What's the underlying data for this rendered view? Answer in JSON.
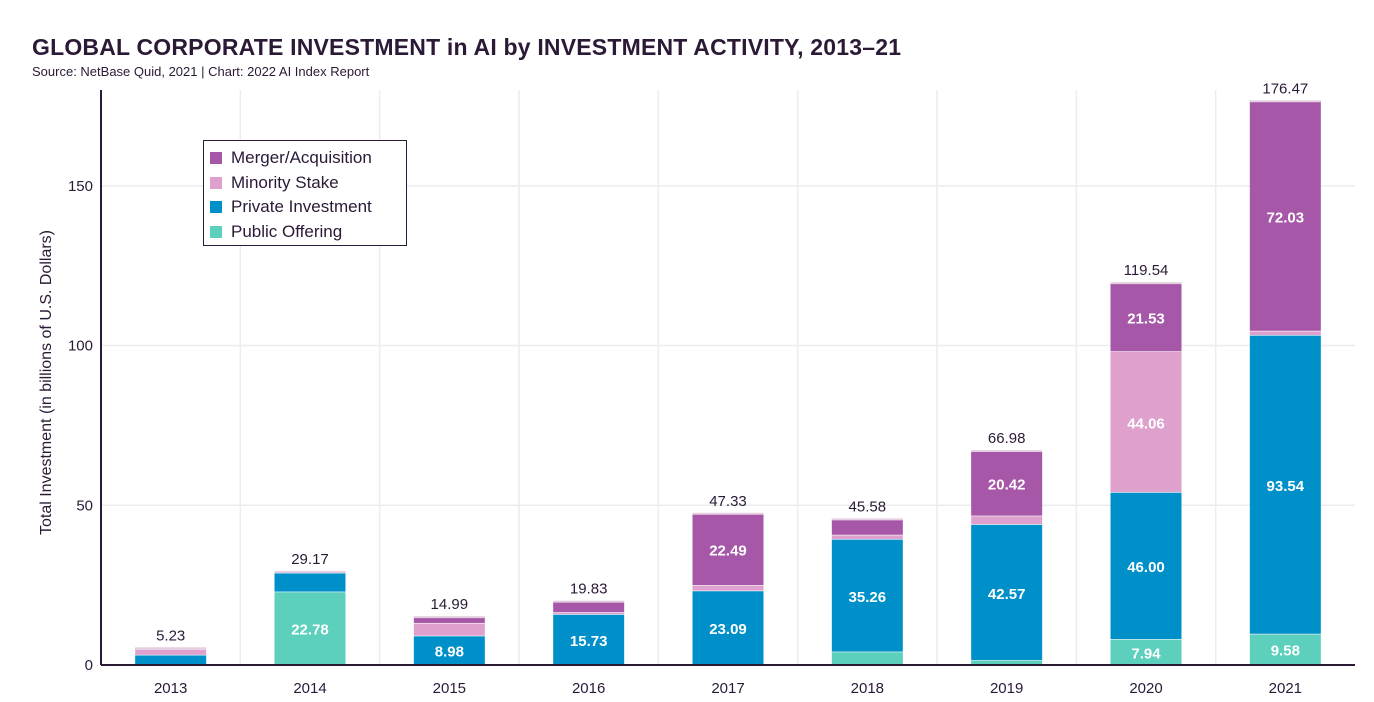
{
  "title": "GLOBAL CORPORATE INVESTMENT in AI by INVESTMENT ACTIVITY, 2013–21",
  "source": "Source: NetBase Quid, 2021 | Chart: 2022 AI Index Report",
  "legend": [
    {
      "name": "Merger/Acquisition",
      "color": "#a657a8"
    },
    {
      "name": "Minority Stake",
      "color": "#dea0cd"
    },
    {
      "name": "Private Investment",
      "color": "#0090c9"
    },
    {
      "name": "Public Offering",
      "color": "#5ccfbd"
    }
  ],
  "chart_data": {
    "type": "bar",
    "stacked": true,
    "title": "GLOBAL CORPORATE INVESTMENT in AI by INVESTMENT ACTIVITY, 2013–21",
    "ylabel": "Total Investment (in billions of U.S. Dollars)",
    "xlabel": "",
    "ylim": [
      0,
      180
    ],
    "yticks": [
      0,
      50,
      100,
      150
    ],
    "grid": true,
    "legend_position": "top-left",
    "categories": [
      "2013",
      "2014",
      "2015",
      "2016",
      "2017",
      "2018",
      "2019",
      "2020",
      "2021"
    ],
    "totals": [
      5.23,
      29.17,
      14.99,
      19.83,
      47.33,
      45.58,
      66.98,
      119.54,
      176.47
    ],
    "series": [
      {
        "name": "Public Offering",
        "color": "#5ccfbd",
        "values": [
          0.0,
          22.78,
          0.0,
          0.0,
          0.0,
          4.0,
          1.3,
          7.94,
          9.58
        ],
        "labels": [
          "",
          "22.78",
          "",
          "",
          "",
          "",
          "",
          "7.94",
          "9.58"
        ]
      },
      {
        "name": "Private Investment",
        "color": "#0090c9",
        "values": [
          3.0,
          5.9,
          8.98,
          15.73,
          23.09,
          35.26,
          42.57,
          46.0,
          93.54
        ],
        "labels": [
          "",
          "",
          "8.98",
          "15.73",
          "23.09",
          "35.26",
          "42.57",
          "46.00",
          "93.54"
        ]
      },
      {
        "name": "Minority Stake",
        "color": "#dea0cd",
        "values": [
          1.73,
          0.0,
          4.0,
          0.6,
          1.75,
          1.32,
          2.69,
          44.06,
          1.32
        ],
        "labels": [
          "",
          "",
          "",
          "",
          "",
          "",
          "",
          "44.06",
          ""
        ]
      },
      {
        "name": "Merger/Acquisition",
        "color": "#a657a8",
        "values": [
          0.5,
          0.49,
          2.01,
          3.5,
          22.49,
          5.0,
          20.42,
          21.53,
          72.03
        ],
        "labels": [
          "",
          "",
          "",
          "",
          "22.49",
          "",
          "20.42",
          "21.53",
          "72.03"
        ]
      }
    ]
  }
}
